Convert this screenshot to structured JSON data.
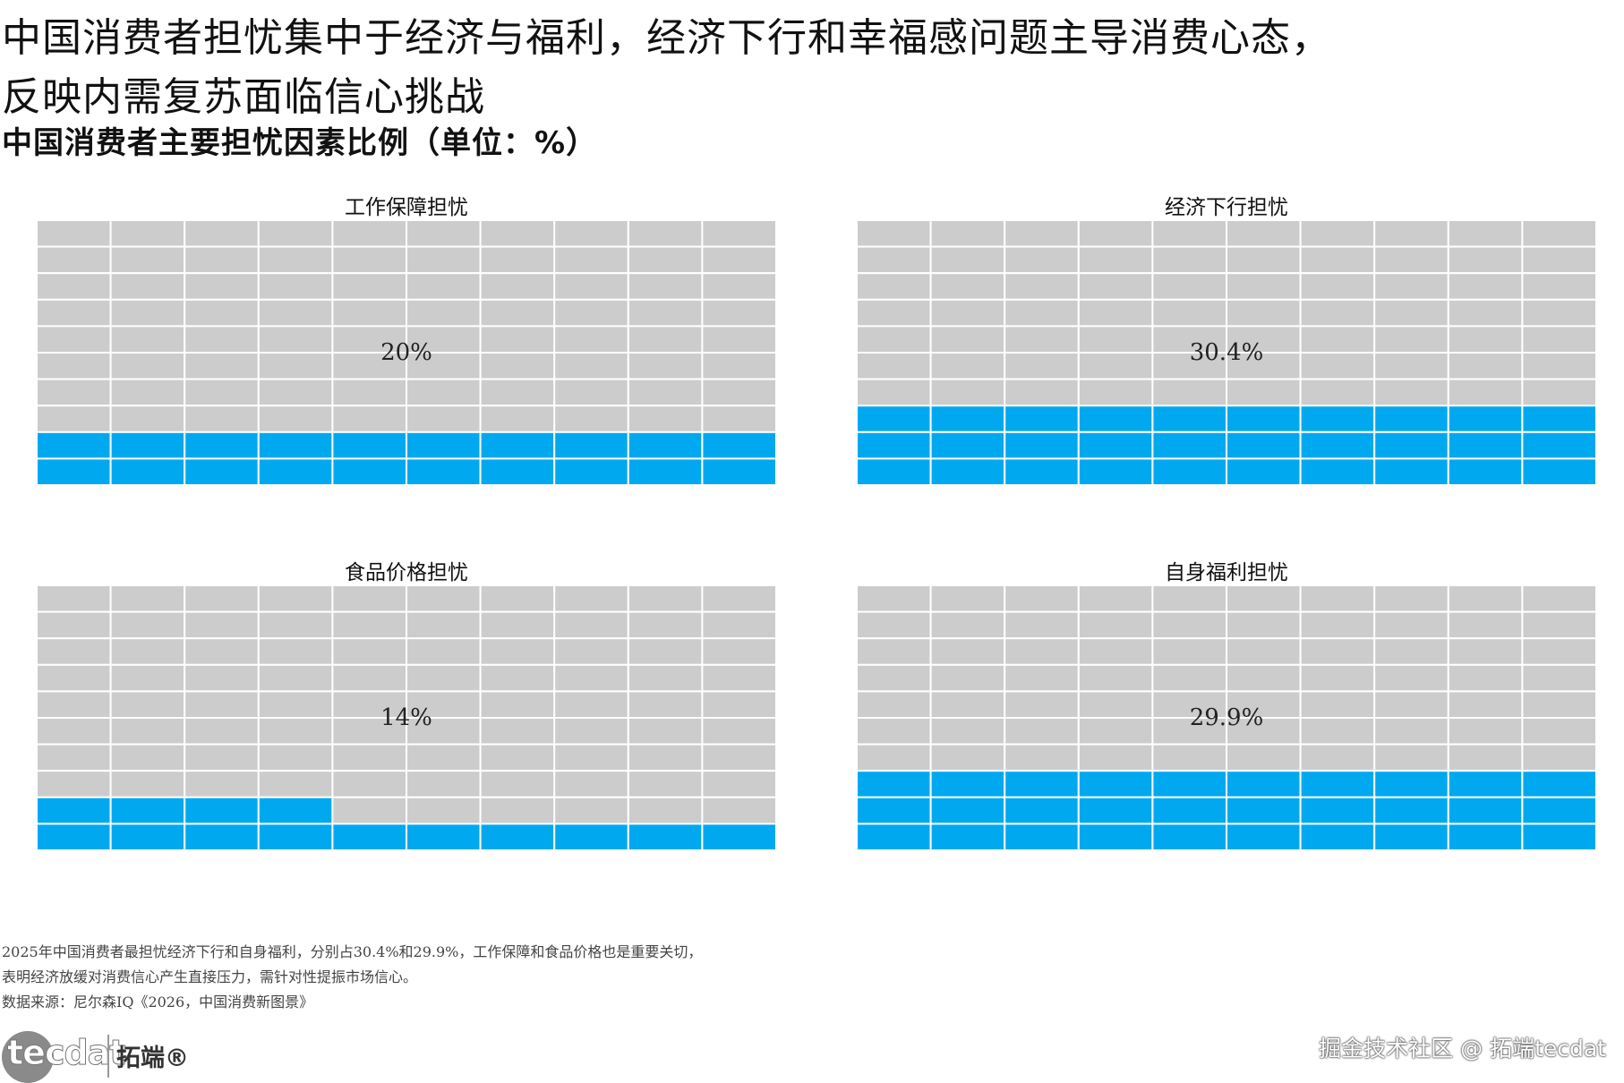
{
  "title": {
    "line1": "中国消费者担忧集中于经济与福利，经济下行和幸福感问题主导消费心态，",
    "line2": "反映内需复苏面临信心挑战"
  },
  "subtitle": "中国消费者主要担忧因素比例（单位：%）",
  "colors": {
    "filled": "#00a9ef",
    "empty": "#cccccc",
    "gridline": "#ffffff"
  },
  "chart_data": [
    {
      "type": "waffle",
      "title": "工作保障担忧",
      "value": 20,
      "label": "20%",
      "rows": 10,
      "cols": 10
    },
    {
      "type": "waffle",
      "title": "经济下行担忧",
      "value": 30.4,
      "label": "30.4%",
      "rows": 10,
      "cols": 10
    },
    {
      "type": "waffle",
      "title": "食品价格担忧",
      "value": 14,
      "label": "14%",
      "rows": 10,
      "cols": 10
    },
    {
      "type": "waffle",
      "title": "自身福利担忧",
      "value": 29.9,
      "label": "29.9%",
      "rows": 10,
      "cols": 10
    }
  ],
  "footer": {
    "line1": "2025年中国消费者最担忧经济下行和自身福利，分别占30.4%和29.9%，工作保障和食品价格也是重要关切，",
    "line2": "表明经济放缓对消费信心产生直接压力，需针对性提振市场信心。",
    "source": "数据来源：尼尔森IQ《2026，中国消费新图景》"
  },
  "logo": {
    "text": "tecdat",
    "cn": "拓端®"
  },
  "watermark": "掘金技术社区 @ 拓端tecdat"
}
